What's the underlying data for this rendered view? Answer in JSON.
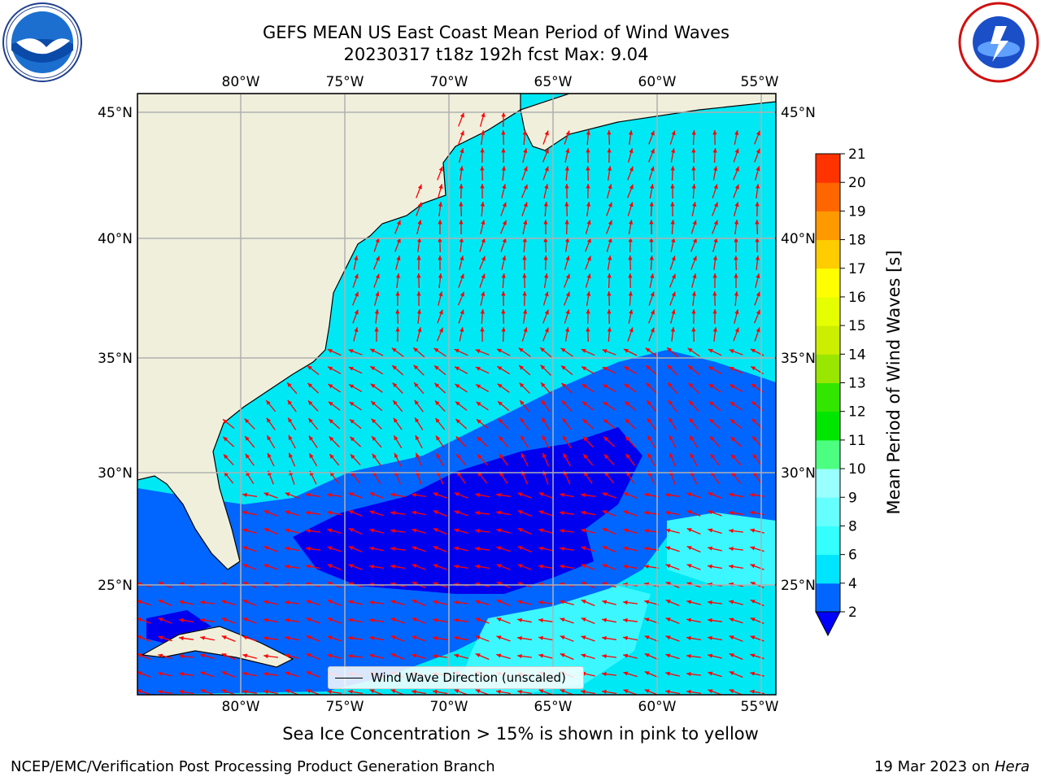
{
  "header": {
    "title_line1": "GEFS MEAN US East Coast Mean Period of Wind Waves",
    "title_line2": "20230317 t18z 192h fcst   Max: 9.04"
  },
  "logos": {
    "left": "noaa-logo",
    "right": "nws-logo"
  },
  "map": {
    "lon_ticks_top": [
      "80°W",
      "75°W",
      "70°W",
      "65°W",
      "60°W",
      "55°W"
    ],
    "lon_ticks_bottom": [
      "80°W",
      "75°W",
      "70°W",
      "65°W",
      "60°W",
      "55°W"
    ],
    "lat_ticks_left": [
      "45°N",
      "40°N",
      "35°N",
      "30°N",
      "25°N"
    ],
    "lat_ticks_right": [
      "45°N",
      "40°N",
      "35°N",
      "30°N",
      "25°N"
    ],
    "lon_range": [
      -85,
      -54.3
    ],
    "lat_range": [
      20.5,
      46.5
    ],
    "legend_label": "Wind Wave Direction (unscaled)",
    "land_color": "#efefdc",
    "arrow_color": "#ff0000"
  },
  "colorbar": {
    "label": "Mean Period of Wind Waves [s]",
    "ticks": [
      "2",
      "4",
      "6",
      "8",
      "9",
      "10",
      "11",
      "12",
      "13",
      "14",
      "15",
      "16",
      "17",
      "18",
      "19",
      "20",
      "21"
    ],
    "colors": [
      "#0066ff",
      "#00e5ff",
      "#33ffff",
      "#66ffff",
      "#99ffff",
      "#4dff80",
      "#00e600",
      "#33e600",
      "#99e600",
      "#ccee00",
      "#e6ff00",
      "#ffff00",
      "#ffcc00",
      "#ff9900",
      "#ff6600",
      "#ff3300",
      "#ff0000"
    ],
    "extend_color": "#0000ff"
  },
  "footer": {
    "note": "Sea Ice Concentration > 15% is shown in pink to yellow",
    "left": "NCEP/EMC/Verification Post Processing Product Generation Branch",
    "right_date": "19 Mar 2023 on ",
    "right_host": "Hera"
  }
}
